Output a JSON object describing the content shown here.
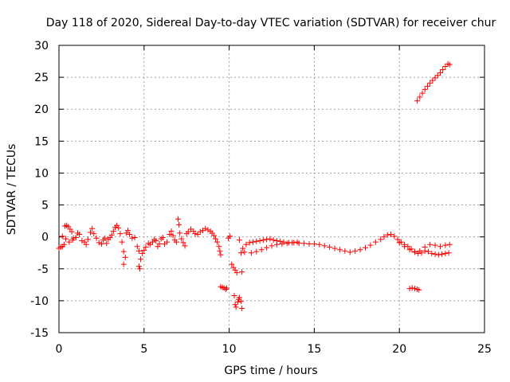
{
  "chart_data": {
    "type": "scatter",
    "title": "Day 118 of 2020, Sidereal Day-to-day VTEC variation (SDTVAR) for receiver chur",
    "xlabel": "GPS time / hours",
    "ylabel": "SDTVAR / TECUs",
    "xlim": [
      0,
      25
    ],
    "ylim": [
      -15,
      30
    ],
    "xticks": [
      0,
      5,
      10,
      15,
      20,
      25
    ],
    "xtick_labels": [
      "0",
      "5",
      "10",
      "15",
      "20",
      "25"
    ],
    "yticks": [
      -15,
      -10,
      -5,
      0,
      5,
      10,
      15,
      20,
      25,
      30
    ],
    "ytick_labels": [
      "-15",
      "-10",
      "-5",
      "0",
      "5",
      "10",
      "15",
      "20",
      "25",
      "30"
    ],
    "grid": true,
    "marker": "+",
    "color": "#ff0000",
    "series": [
      {
        "name": "SDTVAR",
        "points": [
          [
            0.0,
            -1.8
          ],
          [
            0.1,
            -1.6
          ],
          [
            0.2,
            -1.5
          ],
          [
            0.3,
            -1.2
          ],
          [
            0.35,
            1.7
          ],
          [
            0.45,
            1.8
          ],
          [
            0.55,
            1.6
          ],
          [
            0.65,
            1.2
          ],
          [
            0.75,
            0.8
          ],
          [
            0.85,
            -0.2
          ],
          [
            0.2,
            0.1
          ],
          [
            0.4,
            -0.3
          ],
          [
            0.6,
            -0.8
          ],
          [
            0.8,
            -0.5
          ],
          [
            1.0,
            -0.1
          ],
          [
            1.1,
            0.6
          ],
          [
            1.2,
            0.4
          ],
          [
            1.35,
            -0.6
          ],
          [
            1.5,
            -0.8
          ],
          [
            1.6,
            -1.2
          ],
          [
            1.7,
            -0.4
          ],
          [
            1.85,
            0.7
          ],
          [
            1.95,
            1.3
          ],
          [
            2.05,
            0.5
          ],
          [
            2.2,
            -0.2
          ],
          [
            2.35,
            -0.9
          ],
          [
            2.5,
            -1.1
          ],
          [
            2.6,
            -0.5
          ],
          [
            2.7,
            -0.2
          ],
          [
            2.8,
            -1.0
          ],
          [
            2.9,
            -0.4
          ],
          [
            3.0,
            -0.1
          ],
          [
            3.1,
            0.3
          ],
          [
            3.2,
            0.9
          ],
          [
            3.3,
            1.5
          ],
          [
            3.4,
            1.8
          ],
          [
            3.5,
            1.4
          ],
          [
            3.6,
            0.5
          ],
          [
            3.7,
            -0.8
          ],
          [
            3.8,
            -2.3
          ],
          [
            3.9,
            -3.2
          ],
          [
            3.8,
            -4.3
          ],
          [
            3.95,
            0.6
          ],
          [
            4.05,
            1.0
          ],
          [
            4.15,
            0.4
          ],
          [
            4.3,
            -0.2
          ],
          [
            4.45,
            -0.1
          ],
          [
            4.6,
            -1.5
          ],
          [
            4.7,
            -2.2
          ],
          [
            4.7,
            -4.6
          ],
          [
            4.75,
            -5.0
          ],
          [
            4.8,
            -3.5
          ],
          [
            4.9,
            -2.6
          ],
          [
            5.0,
            -2.1
          ],
          [
            5.1,
            -1.6
          ],
          [
            5.25,
            -1.0
          ],
          [
            5.35,
            -1.2
          ],
          [
            5.5,
            -0.8
          ],
          [
            5.6,
            -0.4
          ],
          [
            5.7,
            -0.6
          ],
          [
            5.8,
            -1.5
          ],
          [
            5.9,
            -1.1
          ],
          [
            6.0,
            -0.3
          ],
          [
            6.1,
            -0.1
          ],
          [
            6.2,
            -1.1
          ],
          [
            6.35,
            -0.8
          ],
          [
            6.5,
            0.4
          ],
          [
            6.6,
            0.9
          ],
          [
            6.7,
            0.2
          ],
          [
            6.8,
            -0.5
          ],
          [
            6.9,
            -0.8
          ],
          [
            7.0,
            2.8
          ],
          [
            7.05,
            1.9
          ],
          [
            7.1,
            0.6
          ],
          [
            7.2,
            -0.3
          ],
          [
            7.3,
            -0.9
          ],
          [
            7.4,
            -1.4
          ],
          [
            7.5,
            0.5
          ],
          [
            7.6,
            0.8
          ],
          [
            7.75,
            1.2
          ],
          [
            7.9,
            0.9
          ],
          [
            8.0,
            0.5
          ],
          [
            8.15,
            0.4
          ],
          [
            8.3,
            0.8
          ],
          [
            8.45,
            1.0
          ],
          [
            8.6,
            1.3
          ],
          [
            8.75,
            1.1
          ],
          [
            8.9,
            0.9
          ],
          [
            9.0,
            0.6
          ],
          [
            9.1,
            0.2
          ],
          [
            9.2,
            -0.3
          ],
          [
            9.3,
            -0.8
          ],
          [
            9.4,
            -1.5
          ],
          [
            9.45,
            -2.2
          ],
          [
            9.5,
            -2.8
          ],
          [
            9.5,
            -7.8
          ],
          [
            9.6,
            -7.9
          ],
          [
            9.7,
            -8.0
          ],
          [
            9.8,
            -8.2
          ],
          [
            9.85,
            -8.0
          ],
          [
            9.95,
            -0.2
          ],
          [
            10.05,
            0.1
          ],
          [
            10.15,
            -4.3
          ],
          [
            10.25,
            -4.8
          ],
          [
            10.35,
            -5.2
          ],
          [
            10.45,
            -5.6
          ],
          [
            10.3,
            -9.2
          ],
          [
            10.35,
            -10.6
          ],
          [
            10.4,
            -11.0
          ],
          [
            10.5,
            -10.2
          ],
          [
            10.55,
            -9.8
          ],
          [
            10.6,
            -9.5
          ],
          [
            10.7,
            -10.1
          ],
          [
            10.75,
            -11.2
          ],
          [
            10.6,
            -0.5
          ],
          [
            10.7,
            -2.5
          ],
          [
            10.75,
            -5.5
          ],
          [
            10.8,
            -1.8
          ],
          [
            10.9,
            -2.4
          ],
          [
            11.0,
            -1.2
          ],
          [
            11.2,
            -0.9
          ],
          [
            11.4,
            -0.8
          ],
          [
            11.6,
            -0.7
          ],
          [
            11.8,
            -0.6
          ],
          [
            12.0,
            -0.5
          ],
          [
            12.2,
            -0.4
          ],
          [
            12.4,
            -0.3
          ],
          [
            12.6,
            -0.5
          ],
          [
            12.8,
            -0.6
          ],
          [
            13.0,
            -0.7
          ],
          [
            11.3,
            -2.5
          ],
          [
            11.6,
            -2.3
          ],
          [
            11.9,
            -2.0
          ],
          [
            12.2,
            -1.7
          ],
          [
            12.5,
            -1.4
          ],
          [
            12.8,
            -1.2
          ],
          [
            13.1,
            -1.1
          ],
          [
            13.4,
            -1.0
          ],
          [
            13.7,
            -0.9
          ],
          [
            14.0,
            -0.8
          ],
          [
            13.2,
            -0.8
          ],
          [
            13.5,
            -0.9
          ],
          [
            13.8,
            -0.9
          ],
          [
            14.1,
            -1.0
          ],
          [
            14.4,
            -1.0
          ],
          [
            14.7,
            -1.1
          ],
          [
            15.0,
            -1.1
          ],
          [
            15.3,
            -1.2
          ],
          [
            15.6,
            -1.4
          ],
          [
            15.9,
            -1.6
          ],
          [
            16.2,
            -1.8
          ],
          [
            16.5,
            -2.0
          ],
          [
            16.8,
            -2.2
          ],
          [
            17.1,
            -2.4
          ],
          [
            17.4,
            -2.2
          ],
          [
            17.7,
            -2.0
          ],
          [
            18.0,
            -1.7
          ],
          [
            18.3,
            -1.3
          ],
          [
            18.6,
            -0.8
          ],
          [
            18.9,
            -0.4
          ],
          [
            19.1,
            0.0
          ],
          [
            19.3,
            0.3
          ],
          [
            19.5,
            0.4
          ],
          [
            19.7,
            0.1
          ],
          [
            19.9,
            -0.4
          ],
          [
            20.1,
            -0.8
          ],
          [
            20.3,
            -1.2
          ],
          [
            20.5,
            -1.5
          ],
          [
            20.7,
            -1.9
          ],
          [
            20.9,
            -2.3
          ],
          [
            21.1,
            -2.6
          ],
          [
            21.3,
            -2.5
          ],
          [
            21.5,
            -2.2
          ],
          [
            21.7,
            -2.3
          ],
          [
            21.9,
            -2.6
          ],
          [
            22.1,
            -2.7
          ],
          [
            22.3,
            -2.8
          ],
          [
            22.5,
            -2.7
          ],
          [
            22.7,
            -2.6
          ],
          [
            22.9,
            -2.5
          ],
          [
            20.0,
            -0.9
          ],
          [
            20.3,
            -1.5
          ],
          [
            20.6,
            -2.0
          ],
          [
            20.9,
            -2.4
          ],
          [
            21.2,
            -2.2
          ],
          [
            21.5,
            -1.6
          ],
          [
            21.8,
            -1.2
          ],
          [
            22.1,
            -1.3
          ],
          [
            22.4,
            -1.5
          ],
          [
            22.7,
            -1.3
          ],
          [
            22.95,
            -1.2
          ],
          [
            20.6,
            -8.1
          ],
          [
            20.75,
            -8.0
          ],
          [
            20.9,
            -8.1
          ],
          [
            21.05,
            -8.2
          ],
          [
            21.15,
            -8.3
          ],
          [
            21.05,
            21.3
          ],
          [
            21.2,
            21.9
          ],
          [
            21.35,
            22.5
          ],
          [
            21.5,
            23.1
          ],
          [
            21.65,
            23.6
          ],
          [
            21.8,
            24.1
          ],
          [
            21.95,
            24.5
          ],
          [
            22.1,
            24.9
          ],
          [
            22.25,
            25.3
          ],
          [
            22.4,
            25.7
          ],
          [
            22.55,
            26.2
          ],
          [
            22.7,
            26.7
          ],
          [
            22.85,
            27.1
          ],
          [
            22.95,
            27.0
          ]
        ]
      }
    ]
  }
}
